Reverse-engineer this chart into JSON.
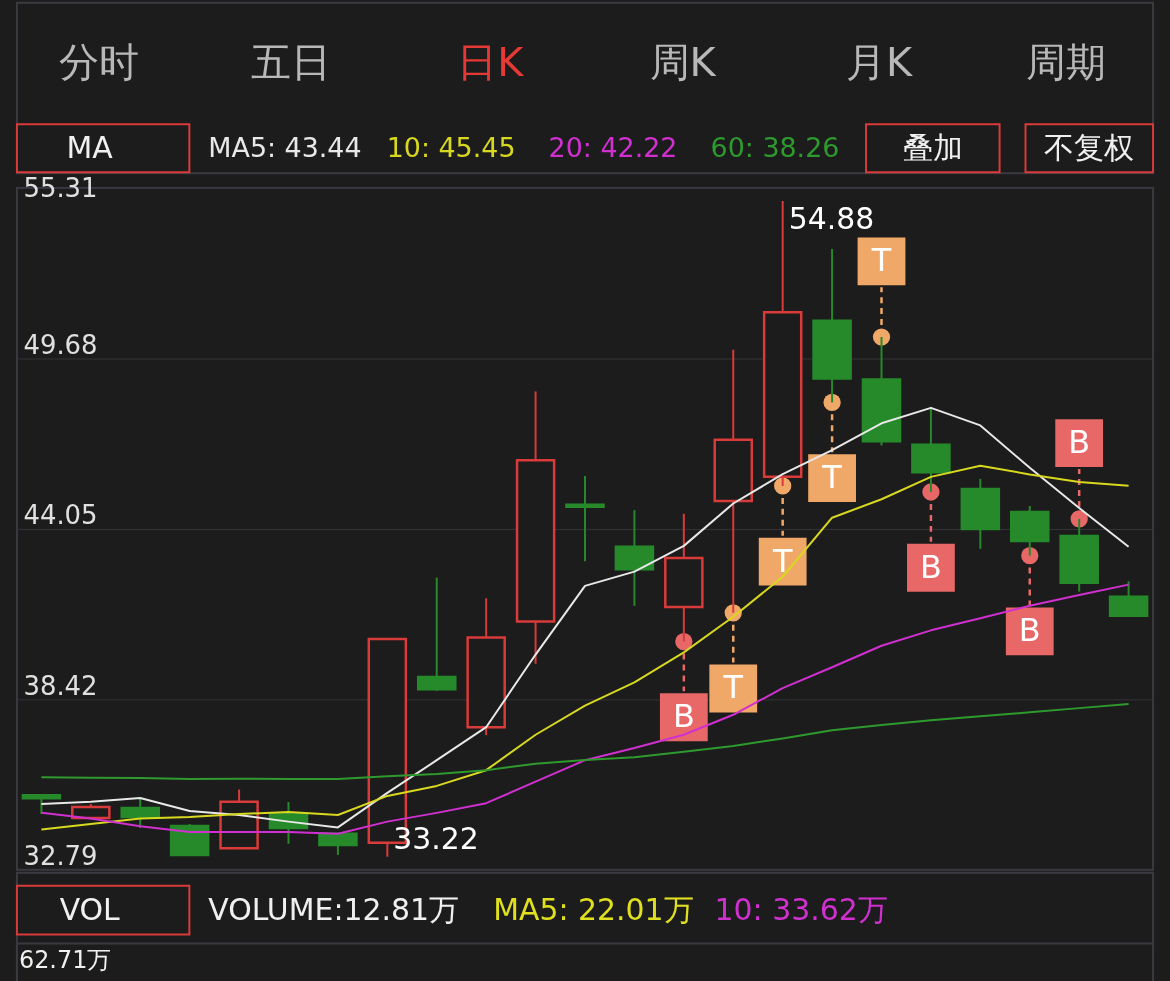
{
  "chart_data": {
    "type": "candlestick",
    "categories": [
      null,
      null,
      null,
      null,
      null,
      null,
      null,
      null,
      null,
      null,
      null,
      null,
      null,
      null,
      null,
      null,
      null,
      null,
      null,
      null,
      null,
      null,
      null
    ],
    "ohlc": [
      [
        35.25,
        35.25,
        34.63,
        35.15
      ],
      [
        34.5,
        34.96,
        34.5,
        34.86
      ],
      [
        34.83,
        35.13,
        34.17,
        34.53
      ],
      [
        34.24,
        34.3,
        33.25,
        33.28
      ],
      [
        33.5,
        35.44,
        33.47,
        35.04
      ],
      [
        34.63,
        35.03,
        33.65,
        34.17
      ],
      [
        33.98,
        34.0,
        33.28,
        33.61
      ],
      [
        33.68,
        40.41,
        33.22,
        40.41
      ],
      [
        39.16,
        42.44,
        38.7,
        38.75
      ],
      [
        37.5,
        41.76,
        37.24,
        40.46
      ],
      [
        40.99,
        48.59,
        39.6,
        46.32
      ],
      [
        44.85,
        45.8,
        42.98,
        44.78
      ],
      [
        43.46,
        44.67,
        41.51,
        42.72
      ],
      [
        41.47,
        44.55,
        40.33,
        43.09
      ],
      [
        44.97,
        49.97,
        41.28,
        47.0
      ],
      [
        45.77,
        54.88,
        45.47,
        51.21
      ],
      [
        50.93,
        53.3,
        48.23,
        49.02
      ],
      [
        48.99,
        50.39,
        46.81,
        46.95
      ],
      [
        46.83,
        48.06,
        45.27,
        45.92
      ],
      [
        45.37,
        45.7,
        43.39,
        44.05
      ],
      [
        44.61,
        44.81,
        43.17,
        43.65
      ],
      [
        43.82,
        44.38,
        41.98,
        42.27
      ],
      [
        41.81,
        42.32,
        41.15,
        41.18
      ]
    ],
    "colors": [
      "#268a2a",
      "#d93a3a",
      "#268a2a",
      "#268a2a",
      "#d93a3a",
      "#268a2a",
      "#268a2a",
      "#d93a3a",
      "#268a2a",
      "#d93a3a",
      "#d93a3a",
      "#268a2a",
      "#268a2a",
      "#d93a3a",
      "#d93a3a",
      "#d93a3a",
      "#268a2a",
      "#268a2a",
      "#268a2a",
      "#268a2a",
      "#268a2a",
      "#268a2a",
      "#268a2a"
    ],
    "series": [
      {
        "name": "MA5: 43.44",
        "type": "line",
        "color": "#e8e8e8",
        "values": [
          34.96,
          35.04,
          35.16,
          34.73,
          34.6,
          34.38,
          34.19,
          35.33,
          36.41,
          37.5,
          39.9,
          42.17,
          42.64,
          43.49,
          44.89,
          45.86,
          46.65,
          47.54,
          48.05,
          47.47,
          46.07,
          44.74,
          43.46
        ]
      },
      {
        "name": "10: 45.45",
        "type": "line",
        "color": "#d8d820",
        "values": [
          34.12,
          34.3,
          34.48,
          34.53,
          34.63,
          34.7,
          34.6,
          35.23,
          35.56,
          36.08,
          37.25,
          38.21,
          38.98,
          39.97,
          41.15,
          42.47,
          44.42,
          45.03,
          45.77,
          46.14,
          45.85,
          45.6,
          45.48
        ]
      },
      {
        "name": "20: 42.22",
        "type": "line",
        "color": "#d030d0",
        "values": [
          34.67,
          34.48,
          34.23,
          34.04,
          34.04,
          34.04,
          33.98,
          34.38,
          34.67,
          34.99,
          35.7,
          36.41,
          36.81,
          37.25,
          37.91,
          38.79,
          39.48,
          40.19,
          40.7,
          41.1,
          41.51,
          41.87,
          42.21
        ]
      },
      {
        "name": "60: 38.26",
        "type": "line",
        "color": "#2e9a2e",
        "values": [
          35.85,
          35.83,
          35.82,
          35.79,
          35.8,
          35.79,
          35.79,
          35.88,
          35.95,
          36.08,
          36.29,
          36.42,
          36.51,
          36.69,
          36.88,
          37.13,
          37.4,
          37.57,
          37.73,
          37.86,
          37.99,
          38.13,
          38.27
        ]
      },
      {
        "type": "scatter",
        "values": [
          null,
          null,
          null,
          null,
          null,
          null,
          null,
          null,
          null,
          null,
          null,
          null,
          null,
          40.33,
          41.28,
          45.47,
          48.23,
          50.39,
          45.27,
          null,
          43.17,
          44.38,
          null
        ],
        "colors": [
          null,
          null,
          null,
          null,
          null,
          null,
          null,
          null,
          null,
          null,
          null,
          null,
          null,
          "#e86868",
          "#f0a868",
          "#f0a868",
          "#f0a868",
          "#f0a868",
          "#e86868",
          null,
          "#e86868",
          "#e86868",
          null
        ],
        "value_labels": [
          null,
          null,
          null,
          null,
          null,
          null,
          null,
          null,
          null,
          null,
          null,
          null,
          null,
          "B",
          "T",
          "T",
          "T",
          "T",
          "B",
          null,
          "B",
          "B",
          null
        ]
      }
    ],
    "ylim": [
      32.79,
      55.31
    ],
    "yticks": [
      32.79,
      38.42,
      44.05,
      49.68,
      55.31
    ],
    "grid": "y",
    "legend": "top left",
    "line_style": "solid",
    "annotations": [
      "分时",
      "五日",
      "日K",
      "周K",
      "月K",
      "周期",
      "MA",
      "叠加",
      "不复权",
      "VOL",
      "VOLUME:12.81万",
      "MA5: 22.01万",
      "10: 33.62万",
      "62.71万",
      "54.88",
      "33.22"
    ]
  }
}
